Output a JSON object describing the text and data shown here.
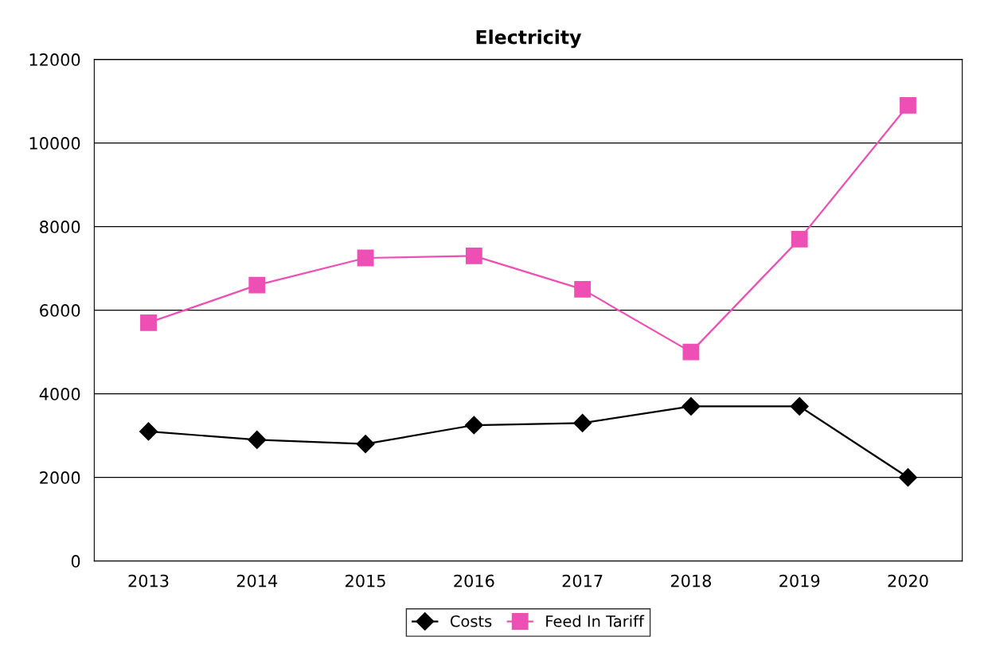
{
  "chart_data": {
    "type": "line",
    "title": "Electricity",
    "categories": [
      "2013",
      "2014",
      "2015",
      "2016",
      "2017",
      "2018",
      "2019",
      "2020"
    ],
    "series": [
      {
        "name": "Costs",
        "color": "#000000",
        "marker": "diamond",
        "values": [
          3100,
          2900,
          2800,
          3250,
          3300,
          3700,
          3700,
          2000
        ]
      },
      {
        "name": "Feed In Tariff",
        "color": "#ee4fb4",
        "marker": "square",
        "values": [
          5700,
          6600,
          7250,
          7300,
          6500,
          5000,
          7700,
          10900
        ]
      }
    ],
    "ylim": [
      0,
      12000
    ],
    "yticks": [
      0,
      2000,
      4000,
      6000,
      8000,
      10000,
      12000
    ],
    "grid": "y",
    "legend": "bottom"
  }
}
